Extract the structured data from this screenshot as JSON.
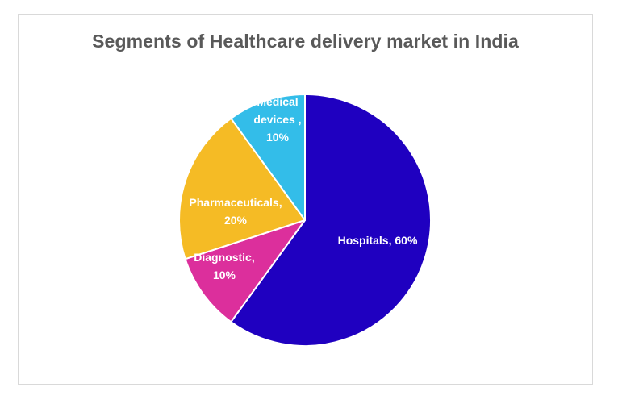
{
  "chart_data": {
    "type": "pie",
    "title": "Segments of Healthcare delivery market in India",
    "start_angle_deg": 0,
    "direction": "clockwise",
    "slices": [
      {
        "label_lines": [
          "Hospitals, 60%"
        ],
        "category": "Hospitals",
        "value": 60,
        "color": "#1f00c0"
      },
      {
        "label_lines": [
          "Diagnostic,",
          "10%"
        ],
        "category": "Diagnostic",
        "value": 10,
        "color": "#dc2f9c"
      },
      {
        "label_lines": [
          "Pharmaceuticals,",
          "20%"
        ],
        "category": "Pharmaceuticals",
        "value": 20,
        "color": "#f5bb25"
      },
      {
        "label_lines": [
          "Medical",
          "devices ,",
          "10%"
        ],
        "category": "Medical devices",
        "value": 10,
        "color": "#33bde9"
      }
    ],
    "slice_border_color": "#ffffff",
    "label_color": "#ffffff"
  }
}
